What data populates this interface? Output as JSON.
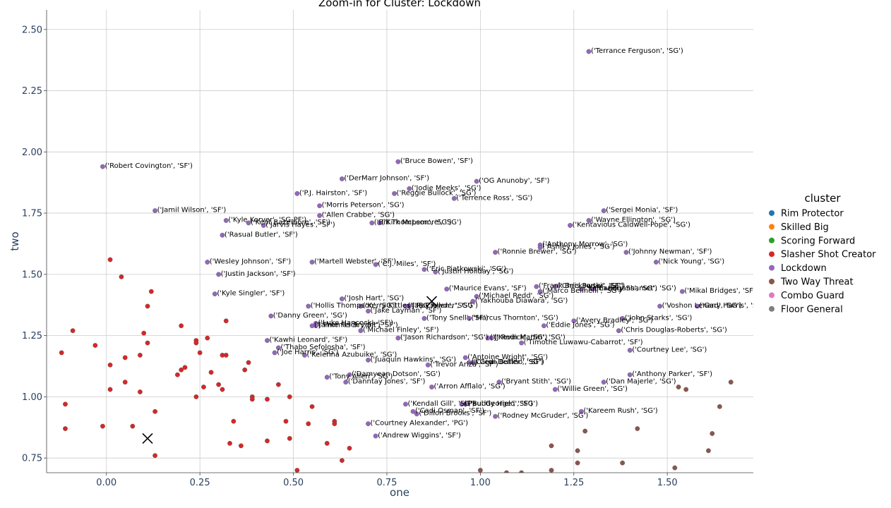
{
  "chart_data": {
    "type": "scatter",
    "title": "Zoom-in for Cluster: Lockdown",
    "xlabel": "one",
    "ylabel": "two",
    "xlim": [
      -0.16,
      1.73
    ],
    "ylim": [
      0.69,
      2.58
    ],
    "xticks": [
      "0.00",
      "0.25",
      "0.50",
      "0.75",
      "1.00",
      "1.25",
      "1.50"
    ],
    "xtick_values": [
      0,
      0.25,
      0.5,
      0.75,
      1.0,
      1.25,
      1.5
    ],
    "yticks": [
      "0.75",
      "1.00",
      "1.25",
      "1.50",
      "1.75",
      "2.00",
      "2.25",
      "2.50"
    ],
    "ytick_values": [
      0.75,
      1.0,
      1.25,
      1.5,
      1.75,
      2.0,
      2.25,
      2.5
    ],
    "grid": true,
    "legend": {
      "title": "cluster",
      "placement": "right",
      "entries": [
        {
          "label": "Rim Protector",
          "color": "#1f77b4"
        },
        {
          "label": "Skilled Big",
          "color": "#ff7f0e"
        },
        {
          "label": "Scoring Forward",
          "color": "#2ca02c"
        },
        {
          "label": "Slasher Shot Creator",
          "color": "#d62728"
        },
        {
          "label": "Lockdown",
          "color": "#9467bd"
        },
        {
          "label": "Two Way Threat",
          "color": "#8c564b"
        },
        {
          "label": "Combo Guard",
          "color": "#e377c2"
        },
        {
          "label": "Floor General",
          "color": "#7f7f7f"
        }
      ]
    },
    "centroids": [
      {
        "x": 0.87,
        "y": 1.39
      },
      {
        "x": 0.11,
        "y": 0.83
      }
    ],
    "series": [
      {
        "name": "Lockdown",
        "color": "#9467bd",
        "points": [
          {
            "x": 1.29,
            "y": 2.41,
            "label": "('Terrance Ferguson', 'SG')"
          },
          {
            "x": -0.01,
            "y": 1.94,
            "label": "('Robert Covington', 'SF')"
          },
          {
            "x": 0.78,
            "y": 1.96,
            "label": "('Bruce Bowen', 'SF')"
          },
          {
            "x": 0.63,
            "y": 1.89,
            "label": "('DerMarr Johnson', 'SF')"
          },
          {
            "x": 0.99,
            "y": 1.88,
            "label": "('OG Anunoby', 'SF')"
          },
          {
            "x": 0.81,
            "y": 1.85,
            "label": "('Jodie Meeks', 'SG')"
          },
          {
            "x": 0.51,
            "y": 1.83,
            "label": "('P.J. Hairston', 'SF')"
          },
          {
            "x": 0.77,
            "y": 1.83,
            "label": "('Reggie Bullock', 'SG')"
          },
          {
            "x": 0.93,
            "y": 1.81,
            "label": "('Terrence Ross', 'SG')"
          },
          {
            "x": 0.57,
            "y": 1.78,
            "label": "('Morris Peterson', 'SG')"
          },
          {
            "x": 0.13,
            "y": 1.76,
            "label": "('Jamil Wilson', 'SF')"
          },
          {
            "x": 1.33,
            "y": 1.76,
            "label": "('Sergei Monia', 'SF')"
          },
          {
            "x": 0.57,
            "y": 1.74,
            "label": "('Allen Crabbe', 'SG')"
          },
          {
            "x": 1.29,
            "y": 1.72,
            "label": "('Wayne Ellington', 'SG')"
          },
          {
            "x": 0.32,
            "y": 1.72,
            "label": "('Kyle Korver', 'SG-PF')"
          },
          {
            "x": 0.38,
            "y": 1.71,
            "label": "('Kent Bazemore', 'SF')"
          },
          {
            "x": 0.42,
            "y": 1.7,
            "label": "('Jarvis Hayes', 'SF')"
          },
          {
            "x": 0.71,
            "y": 1.71,
            "label": "('Bill Thompson', 'SG')"
          },
          {
            "x": 0.73,
            "y": 1.71,
            "label": "('Kirk McLemore', 'SG')"
          },
          {
            "x": 1.24,
            "y": 1.7,
            "label": "('Kentavious Caldwell-Pope', 'SG')"
          },
          {
            "x": 0.31,
            "y": 1.66,
            "label": "('Rasual Butler', 'SF')"
          },
          {
            "x": 1.16,
            "y": 1.62,
            "label": "('Anthony Morrow', 'SG')"
          },
          {
            "x": 1.16,
            "y": 1.61,
            "label": "('Ashley Jones', 'SG')"
          },
          {
            "x": 1.04,
            "y": 1.59,
            "label": "('Ronnie Brewer', 'SG')"
          },
          {
            "x": 1.39,
            "y": 1.59,
            "label": "('Johnny Newman', 'SF')"
          },
          {
            "x": 0.27,
            "y": 1.55,
            "label": "('Wesley Johnson', 'SF')"
          },
          {
            "x": 0.55,
            "y": 1.55,
            "label": "('Martell Webster', 'SF')"
          },
          {
            "x": 0.72,
            "y": 1.54,
            "label": "('C.J. Miles', 'SF')"
          },
          {
            "x": 1.47,
            "y": 1.55,
            "label": "('Nick Young', 'SG')"
          },
          {
            "x": 0.85,
            "y": 1.52,
            "label": "('Eric Piatkowski', 'SG')"
          },
          {
            "x": 0.88,
            "y": 1.51,
            "label": "('Justin Holiday', 'SG')"
          },
          {
            "x": 0.3,
            "y": 1.5,
            "label": "('Justin Jackson', 'SF')"
          },
          {
            "x": 1.15,
            "y": 1.45,
            "label": "('Frank Brickowski', 'SF')"
          },
          {
            "x": 1.2,
            "y": 1.45,
            "label": "('Chris Porter', 'SF')"
          },
          {
            "x": 1.27,
            "y": 1.44,
            "label": "('Keith Bogans', 'SG')"
          },
          {
            "x": 1.3,
            "y": 1.44,
            "label": "('Landry Shamet', 'SG')"
          },
          {
            "x": 0.91,
            "y": 1.44,
            "label": "('Maurice Evans', 'SF')"
          },
          {
            "x": 1.16,
            "y": 1.43,
            "label": "('Marco Belinelli', 'SG')"
          },
          {
            "x": 1.54,
            "y": 1.43,
            "label": "('Mikal Bridges', 'SF')"
          },
          {
            "x": 0.29,
            "y": 1.42,
            "label": "('Kyle Singler', 'SF')"
          },
          {
            "x": 0.99,
            "y": 1.41,
            "label": "('Michael Redd', 'SG')"
          },
          {
            "x": 0.63,
            "y": 1.4,
            "label": "('Josh Hart', 'SG')"
          },
          {
            "x": 0.98,
            "y": 1.39,
            "label": "('Yakhouba Diawara', 'SG')"
          },
          {
            "x": 0.54,
            "y": 1.37,
            "label": "('Hollis Thompson', 'SG')"
          },
          {
            "x": 0.68,
            "y": 1.37,
            "label": "('Kerry Kittles', 'SG')"
          },
          {
            "x": 0.8,
            "y": 1.37,
            "label": "('Jae Crowder', 'SG')"
          },
          {
            "x": 0.81,
            "y": 1.37,
            "label": "('Ray Allen', 'SG')"
          },
          {
            "x": 1.48,
            "y": 1.37,
            "label": "('Voshon Lenard', 'SG')"
          },
          {
            "x": 1.58,
            "y": 1.37,
            "label": "('Gary Harris', 'SG')"
          },
          {
            "x": 0.7,
            "y": 1.35,
            "label": "('Jake Layman', 'SF')"
          },
          {
            "x": 0.44,
            "y": 1.33,
            "label": "('Danny Green', 'SG')"
          },
          {
            "x": 0.85,
            "y": 1.32,
            "label": "('Tony Snell', 'SF')"
          },
          {
            "x": 0.97,
            "y": 1.32,
            "label": "('Marcus Thornton', 'SG')"
          },
          {
            "x": 1.25,
            "y": 1.31,
            "label": "('Avery Bradley', 'SG')"
          },
          {
            "x": 1.38,
            "y": 1.32,
            "label": "('John Starks', 'SG')"
          },
          {
            "x": 0.56,
            "y": 1.3,
            "label": "('Luke Hancock', 'SF')"
          },
          {
            "x": 0.55,
            "y": 1.29,
            "label": "('Jamie Feick', 'SF')"
          },
          {
            "x": 0.56,
            "y": 1.29,
            "label": "('Thomas Bryant', 'SF')"
          },
          {
            "x": 1.17,
            "y": 1.29,
            "label": "('Eddie Jones', 'SG')"
          },
          {
            "x": 0.68,
            "y": 1.27,
            "label": "('Michael Finley', 'SF')"
          },
          {
            "x": 1.37,
            "y": 1.27,
            "label": "('Chris Douglas-Roberts', 'SG')"
          },
          {
            "x": 0.78,
            "y": 1.24,
            "label": "('Jason Richardson', 'SG')"
          },
          {
            "x": 1.02,
            "y": 1.24,
            "label": "('JJ Redick', 'SG')"
          },
          {
            "x": 1.03,
            "y": 1.24,
            "label": "('Kevin Martin', 'SG')"
          },
          {
            "x": 0.43,
            "y": 1.23,
            "label": "('Kawhi Leonard', 'SF')"
          },
          {
            "x": 1.11,
            "y": 1.22,
            "label": "('Timothe Luwawu-Cabarrot', 'SF')"
          },
          {
            "x": 0.46,
            "y": 1.2,
            "label": "('Thabo Sefolosha', 'SF')"
          },
          {
            "x": 0.45,
            "y": 1.18,
            "label": "('Joe Harris', 'SG')"
          },
          {
            "x": 1.4,
            "y": 1.19,
            "label": "('Courtney Lee', 'SG')"
          },
          {
            "x": 0.53,
            "y": 1.17,
            "label": "('Kelenna Azubuike', 'SG')"
          },
          {
            "x": 0.96,
            "y": 1.16,
            "label": "('Antoine Wright', 'SG')"
          },
          {
            "x": 0.7,
            "y": 1.15,
            "label": "('Juaquin Hawkins', 'SG')"
          },
          {
            "x": 0.97,
            "y": 1.14,
            "label": "('Caron Butler', 'SG')"
          },
          {
            "x": 0.98,
            "y": 1.14,
            "label": "('Cedi Delfino', 'SF')"
          },
          {
            "x": 0.86,
            "y": 1.13,
            "label": "('Trevor Ariza', 'SF')"
          },
          {
            "x": 1.4,
            "y": 1.09,
            "label": "('Anthony Parker', 'SF')"
          },
          {
            "x": 0.59,
            "y": 1.08,
            "label": "('Tony Allen', 'SG')"
          },
          {
            "x": 0.65,
            "y": 1.09,
            "label": "('Damyean Dotson', 'SG')"
          },
          {
            "x": 0.64,
            "y": 1.06,
            "label": "('Danntay Jones', 'SF')"
          },
          {
            "x": 1.05,
            "y": 1.06,
            "label": "('Bryant Stith', 'SG')"
          },
          {
            "x": 1.33,
            "y": 1.06,
            "label": "('Dan Majerle', 'SG')"
          },
          {
            "x": 0.87,
            "y": 1.04,
            "label": "('Arron Afflalo', 'SG')"
          },
          {
            "x": 1.2,
            "y": 1.03,
            "label": "('Willie Green', 'SG')"
          },
          {
            "x": 0.8,
            "y": 0.97,
            "label": "('Kendall Gill', 'SG')"
          },
          {
            "x": 0.95,
            "y": 0.97,
            "label": "('Paul George', 'SF')"
          },
          {
            "x": 0.96,
            "y": 0.97,
            "label": "('Buddy Hield', 'SG')"
          },
          {
            "x": 0.82,
            "y": 0.94,
            "label": "('Cadi Osman', 'SF')"
          },
          {
            "x": 1.27,
            "y": 0.94,
            "label": "('Kareem Rush', 'SG')"
          },
          {
            "x": 0.83,
            "y": 0.93,
            "label": "('Dillon Brooks', 'SF')"
          },
          {
            "x": 1.04,
            "y": 0.92,
            "label": "('Rodney McGruder', 'SG')"
          },
          {
            "x": 0.7,
            "y": 0.89,
            "label": "('Courtney Alexander', 'PG')"
          },
          {
            "x": 0.72,
            "y": 0.84,
            "label": "('Andrew Wiggins', 'SF')"
          }
        ]
      },
      {
        "name": "Slasher Shot Creator",
        "color": "#d62728",
        "points": [
          {
            "x": 0.01,
            "y": 1.56
          },
          {
            "x": 0.04,
            "y": 1.49
          },
          {
            "x": 0.12,
            "y": 1.43
          },
          {
            "x": 0.11,
            "y": 1.37
          },
          {
            "x": 0.32,
            "y": 1.31
          },
          {
            "x": 0.2,
            "y": 1.29
          },
          {
            "x": -0.09,
            "y": 1.27
          },
          {
            "x": 0.1,
            "y": 1.26
          },
          {
            "x": 0.27,
            "y": 1.24
          },
          {
            "x": 0.24,
            "y": 1.23
          },
          {
            "x": 0.24,
            "y": 1.22
          },
          {
            "x": 0.11,
            "y": 1.22
          },
          {
            "x": -0.03,
            "y": 1.21
          },
          {
            "x": -0.12,
            "y": 1.18
          },
          {
            "x": 0.25,
            "y": 1.18
          },
          {
            "x": 0.31,
            "y": 1.17
          },
          {
            "x": 0.32,
            "y": 1.17
          },
          {
            "x": 0.09,
            "y": 1.17
          },
          {
            "x": 0.05,
            "y": 1.16
          },
          {
            "x": 0.38,
            "y": 1.14
          },
          {
            "x": 0.01,
            "y": 1.13
          },
          {
            "x": 0.21,
            "y": 1.12
          },
          {
            "x": 0.2,
            "y": 1.11
          },
          {
            "x": 0.37,
            "y": 1.11
          },
          {
            "x": 0.28,
            "y": 1.1
          },
          {
            "x": 0.19,
            "y": 1.09
          },
          {
            "x": 0.05,
            "y": 1.06
          },
          {
            "x": 0.3,
            "y": 1.05
          },
          {
            "x": 0.46,
            "y": 1.05
          },
          {
            "x": 0.26,
            "y": 1.04
          },
          {
            "x": 0.01,
            "y": 1.03
          },
          {
            "x": 0.31,
            "y": 1.03
          },
          {
            "x": 0.09,
            "y": 1.02
          },
          {
            "x": 0.39,
            "y": 1.0
          },
          {
            "x": 0.24,
            "y": 1.0
          },
          {
            "x": 0.49,
            "y": 1.0
          },
          {
            "x": 0.39,
            "y": 0.99
          },
          {
            "x": 0.43,
            "y": 0.99
          },
          {
            "x": -0.11,
            "y": 0.97
          },
          {
            "x": 0.55,
            "y": 0.96
          },
          {
            "x": 0.13,
            "y": 0.94
          },
          {
            "x": 0.34,
            "y": 0.9
          },
          {
            "x": 0.48,
            "y": 0.9
          },
          {
            "x": 0.61,
            "y": 0.9
          },
          {
            "x": 0.61,
            "y": 0.89
          },
          {
            "x": 0.54,
            "y": 0.89
          },
          {
            "x": -0.01,
            "y": 0.88
          },
          {
            "x": 0.07,
            "y": 0.88
          },
          {
            "x": -0.11,
            "y": 0.87
          },
          {
            "x": 0.49,
            "y": 0.83
          },
          {
            "x": 0.43,
            "y": 0.82
          },
          {
            "x": 0.33,
            "y": 0.81
          },
          {
            "x": 0.59,
            "y": 0.81
          },
          {
            "x": 0.36,
            "y": 0.8
          },
          {
            "x": 0.65,
            "y": 0.79
          },
          {
            "x": 0.13,
            "y": 0.76
          },
          {
            "x": 0.63,
            "y": 0.74
          },
          {
            "x": 0.51,
            "y": 0.7
          }
        ]
      },
      {
        "name": "Two Way Threat",
        "color": "#8c564b",
        "points": [
          {
            "x": 1.67,
            "y": 1.06
          },
          {
            "x": 1.53,
            "y": 1.04
          },
          {
            "x": 1.55,
            "y": 1.03
          },
          {
            "x": 1.64,
            "y": 0.96
          },
          {
            "x": 1.42,
            "y": 0.87
          },
          {
            "x": 1.28,
            "y": 0.86
          },
          {
            "x": 1.62,
            "y": 0.85
          },
          {
            "x": 1.19,
            "y": 0.8
          },
          {
            "x": 1.61,
            "y": 0.78
          },
          {
            "x": 1.26,
            "y": 0.78
          },
          {
            "x": 1.26,
            "y": 0.73
          },
          {
            "x": 1.38,
            "y": 0.73
          },
          {
            "x": 1.52,
            "y": 0.71
          },
          {
            "x": 1.0,
            "y": 0.7
          },
          {
            "x": 1.07,
            "y": 0.69
          },
          {
            "x": 1.11,
            "y": 0.69
          },
          {
            "x": 1.19,
            "y": 0.7
          }
        ]
      }
    ]
  }
}
